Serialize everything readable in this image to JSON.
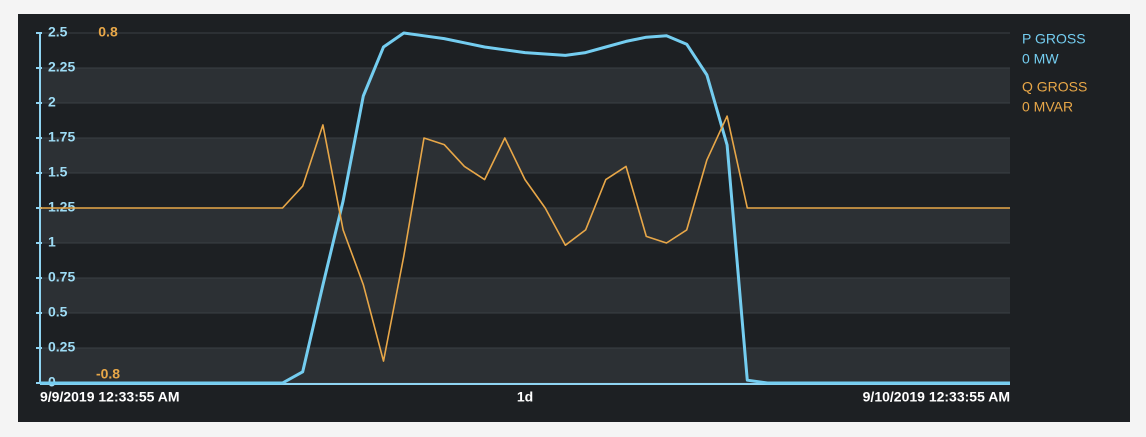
{
  "chart_data": {
    "type": "line",
    "xlabels": [
      "9/9/2019 12:33:55 AM",
      "1d",
      "9/10/2019 12:33:55 AM"
    ],
    "ylim": [
      0,
      2.5
    ],
    "yticks": [
      0,
      0.25,
      0.5,
      0.75,
      1,
      1.25,
      1.5,
      1.75,
      2,
      2.25,
      2.5
    ],
    "y2lim": [
      -0.8,
      0.8
    ],
    "y2ticks": [
      -0.8,
      0.8
    ],
    "grid": true,
    "legend": "right",
    "series": [
      {
        "name": "P GROSS",
        "legend_value": "0 MW",
        "color": "#74cdf0",
        "values": [
          0,
          0,
          0,
          0,
          0,
          0,
          0,
          0,
          0,
          0,
          0,
          0,
          0,
          0.08,
          0.7,
          1.3,
          2.05,
          2.4,
          2.5,
          2.48,
          2.46,
          2.43,
          2.4,
          2.38,
          2.36,
          2.35,
          2.34,
          2.36,
          2.4,
          2.44,
          2.47,
          2.48,
          2.42,
          2.2,
          1.7,
          0.02,
          0,
          0,
          0,
          0,
          0,
          0,
          0,
          0,
          0,
          0,
          0,
          0,
          0
        ]
      },
      {
        "name": "Q GROSS",
        "legend_value": "0 MVAR",
        "color": "#e8a748",
        "axis": "y2",
        "values": [
          0,
          0,
          0,
          0,
          0,
          0,
          0,
          0,
          0,
          0,
          0,
          0,
          0,
          0.1,
          0.38,
          -0.1,
          -0.35,
          -0.7,
          -0.22,
          0.32,
          0.29,
          0.19,
          0.13,
          0.32,
          0.13,
          0,
          -0.17,
          -0.1,
          0.13,
          0.19,
          -0.13,
          -0.16,
          -0.1,
          0.22,
          0.42,
          0,
          0,
          0,
          0,
          0,
          0,
          0,
          0,
          0,
          0,
          0,
          0,
          0,
          0
        ]
      }
    ]
  }
}
